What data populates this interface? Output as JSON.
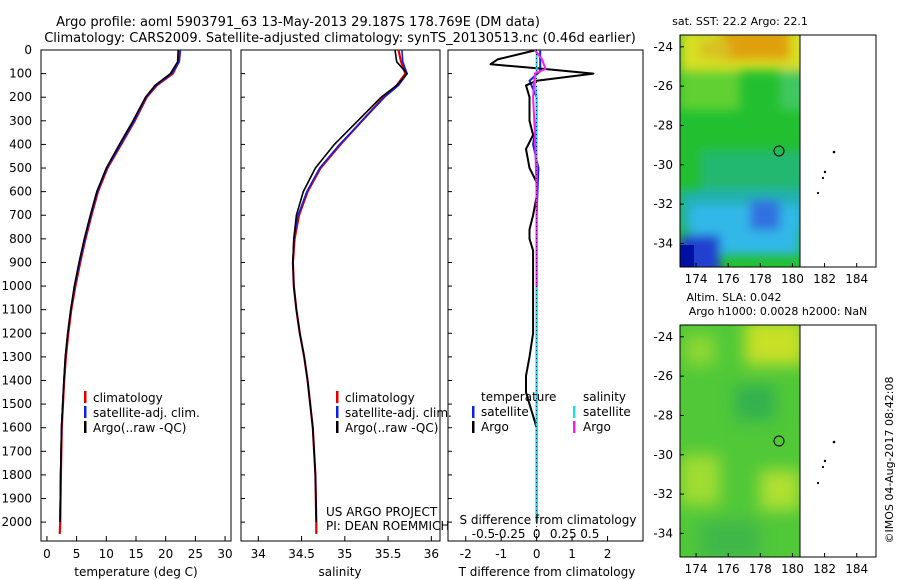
{
  "header": {
    "title_line1": "Argo profile: aoml 5903791_63 13-May-2013 29.187S 178.769E (DM data)",
    "title_line2": "Climatology: CARS2009. Satellite-adjusted climatology: synTS_20130513.nc (0.46d earlier)"
  },
  "credits": {
    "project": "US ARGO PROJECT",
    "pi": "PI: DEAN ROEMMICH",
    "stamp": "©IMOS 04-Aug-2017 08:42:08"
  },
  "colors": {
    "climatology": "#e00000",
    "satellite": "#1020e0",
    "argo": "#000000",
    "salinity_satellite": "#20d8f0",
    "salinity_argo": "#f020f0"
  },
  "legend_profiles": [
    {
      "label": "climatology",
      "color": "#e00000"
    },
    {
      "label": "satellite-adj. clim.",
      "color": "#1020e0"
    },
    {
      "label": "Argo(..raw -QC)",
      "color": "#000000"
    }
  ],
  "legend_diff": {
    "temp_header": "temperature",
    "sal_header": "salinity",
    "temp_items": [
      {
        "label": "satellite",
        "color": "#1020e0"
      },
      {
        "label": "Argo",
        "color": "#000000"
      }
    ],
    "sal_items": [
      {
        "label": "satellite",
        "color": "#20d8f0"
      },
      {
        "label": "Argo",
        "color": "#f020f0"
      }
    ]
  },
  "maps": {
    "sst_title": "sat. SST: 22.2  Argo: 22.1",
    "sla_title_line1": "Altim. SLA: 0.042",
    "sla_title_line2": "Argo h1000: 0.0028 h2000: NaN",
    "lon_ticks": [
      "174",
      "176",
      "178",
      "180",
      "182",
      "184"
    ],
    "lat_ticks": [
      "-24",
      "-26",
      "-28",
      "-30",
      "-32",
      "-34"
    ],
    "argo_position": {
      "lon": 178.769,
      "lat": -29.187
    }
  },
  "chart_data": [
    {
      "type": "line",
      "xlabel": "temperature (deg C)",
      "ylabel": "",
      "xlim": [
        -1,
        31
      ],
      "ylim": [
        2080,
        0
      ],
      "x_ticks": [
        "0",
        "5",
        "10",
        "15",
        "20",
        "25",
        "30"
      ],
      "y_ticks": [
        "0",
        "100",
        "200",
        "300",
        "400",
        "500",
        "600",
        "700",
        "800",
        "900",
        "1000",
        "1100",
        "1200",
        "1300",
        "1400",
        "1500",
        "1600",
        "1700",
        "1800",
        "1900",
        "2000"
      ],
      "series": [
        {
          "name": "climatology",
          "color": "#e00000",
          "x": [
            22.4,
            22.2,
            21.2,
            18.5,
            16.8,
            14.8,
            12.5,
            10.2,
            8.6,
            7.5,
            6.5,
            5.6,
            4.8,
            4.1,
            3.6,
            3.2,
            2.9,
            2.7,
            2.5,
            2.35,
            2.25,
            2.15
          ],
          "y": [
            0,
            50,
            100,
            150,
            200,
            300,
            400,
            500,
            600,
            700,
            800,
            900,
            1000,
            1100,
            1200,
            1300,
            1400,
            1500,
            1600,
            1800,
            2000,
            2050
          ]
        },
        {
          "name": "satellite-adj. clim.",
          "color": "#1020e0",
          "x": [
            22.5,
            22.3,
            21.0,
            18.4,
            16.7,
            14.7,
            12.4,
            10.1,
            8.5,
            7.4,
            6.4,
            5.5,
            4.7,
            4.0,
            3.5,
            3.1,
            2.85,
            2.65,
            2.45,
            2.3,
            2.2
          ],
          "y": [
            0,
            50,
            100,
            150,
            200,
            300,
            400,
            500,
            600,
            700,
            800,
            900,
            1000,
            1100,
            1200,
            1300,
            1400,
            1500,
            1600,
            1800,
            2000
          ]
        },
        {
          "name": "Argo(..raw -QC)",
          "color": "#000000",
          "x": [
            22.1,
            22.0,
            20.8,
            18.2,
            16.6,
            14.5,
            12.2,
            10.0,
            8.4,
            7.3,
            6.3,
            5.4,
            4.6,
            4.0,
            3.5,
            3.1,
            2.85,
            2.65,
            2.45,
            2.3,
            2.2
          ],
          "y": [
            0,
            50,
            100,
            150,
            200,
            300,
            400,
            500,
            600,
            700,
            800,
            900,
            1000,
            1100,
            1200,
            1300,
            1400,
            1500,
            1600,
            1800,
            2000
          ]
        }
      ]
    },
    {
      "type": "line",
      "xlabel": "salinity",
      "ylabel": "",
      "xlim": [
        33.8,
        36.1
      ],
      "ylim": [
        2080,
        0
      ],
      "x_ticks": [
        "34",
        "34.5",
        "35",
        "35.5",
        "36"
      ],
      "series": [
        {
          "name": "climatology",
          "color": "#e00000",
          "x": [
            35.62,
            35.65,
            35.7,
            35.6,
            35.45,
            35.2,
            34.95,
            34.72,
            34.57,
            34.47,
            34.42,
            34.4,
            34.41,
            34.44,
            34.48,
            34.53,
            34.57,
            34.6,
            34.63,
            34.66,
            34.67,
            34.67
          ],
          "y": [
            0,
            50,
            100,
            150,
            200,
            300,
            400,
            500,
            600,
            700,
            800,
            900,
            1000,
            1100,
            1200,
            1300,
            1400,
            1500,
            1600,
            1800,
            2000,
            2050
          ]
        },
        {
          "name": "satellite-adj. clim.",
          "color": "#1020e0",
          "x": [
            35.66,
            35.67,
            35.72,
            35.62,
            35.46,
            35.2,
            34.94,
            34.71,
            34.56,
            34.46,
            34.41,
            34.4,
            34.41,
            34.44,
            34.48,
            34.53,
            34.57,
            34.6,
            34.63,
            34.66,
            34.67
          ],
          "y": [
            0,
            50,
            100,
            150,
            200,
            300,
            400,
            500,
            600,
            700,
            800,
            900,
            1000,
            1100,
            1200,
            1300,
            1400,
            1500,
            1600,
            1800,
            2000
          ]
        },
        {
          "name": "Argo(..raw -QC)",
          "color": "#000000",
          "x": [
            35.58,
            35.6,
            35.72,
            35.6,
            35.42,
            35.15,
            34.88,
            34.66,
            34.52,
            34.44,
            34.41,
            34.4,
            34.41,
            34.44,
            34.48,
            34.53,
            34.57,
            34.6,
            34.63,
            34.66,
            34.67
          ],
          "y": [
            0,
            50,
            100,
            150,
            200,
            300,
            400,
            500,
            600,
            700,
            800,
            900,
            1000,
            1100,
            1200,
            1300,
            1400,
            1500,
            1600,
            1800,
            2000
          ]
        }
      ]
    },
    {
      "type": "line",
      "xlabel": "T difference from climatology",
      "xlabel_top": "S difference from climatology",
      "ylabel": "",
      "xlim": [
        -2.5,
        3
      ],
      "ylim": [
        2080,
        0
      ],
      "x_ticks": [
        "-2",
        "-1",
        "0",
        "1",
        "2"
      ],
      "x_ticks_top": [
        "-0.5",
        "-0.25",
        "0",
        "0.25",
        "0.5"
      ],
      "series": [
        {
          "name": "temperature satellite",
          "color": "#1020e0",
          "x": [
            0.1,
            0.1,
            0.1,
            -0.2,
            0.0,
            0.0,
            -0.1,
            0.05,
            0.0,
            0.0,
            0.0,
            0.0,
            0.0,
            0.0
          ],
          "y": [
            0,
            30,
            90,
            130,
            200,
            300,
            400,
            500,
            700,
            900,
            1200,
            1500,
            1800,
            2000
          ]
        },
        {
          "name": "temperature Argo",
          "color": "#000000",
          "x": [
            0.0,
            -1.1,
            -1.3,
            0.2,
            1.6,
            0.0,
            -0.3,
            -0.2,
            -0.2,
            -0.1,
            -0.3,
            -0.2,
            0.0,
            0.0,
            -0.1,
            -0.2,
            -0.2,
            -0.1,
            -0.1,
            -0.1,
            -0.1,
            -0.2,
            -0.3,
            -0.3,
            -0.2,
            -0.1,
            0.0,
            0.0,
            0.0
          ],
          "y": [
            0,
            40,
            60,
            80,
            100,
            130,
            150,
            200,
            300,
            360,
            420,
            500,
            560,
            620,
            700,
            760,
            800,
            850,
            900,
            1000,
            1200,
            1300,
            1380,
            1450,
            1500,
            1550,
            1600,
            1800,
            2000
          ]
        },
        {
          "name": "salinity satellite",
          "color": "#20d8f0",
          "x": [
            0.0,
            0.0,
            0.0,
            -0.05,
            0.0,
            0.0,
            0.0,
            0.0,
            0.0,
            0.0,
            0.0,
            0.0
          ],
          "y": [
            0,
            30,
            90,
            130,
            200,
            300,
            400,
            600,
            900,
            1200,
            1600,
            2000
          ]
        },
        {
          "name": "salinity Argo",
          "color": "#f020f0",
          "x": [
            -0.05,
            0.15,
            0.25,
            -0.05,
            -0.1,
            -0.05,
            -0.02,
            0.0,
            0.0,
            0.0
          ],
          "y": [
            0,
            40,
            80,
            100,
            200,
            350,
            500,
            600,
            800,
            1000
          ]
        }
      ]
    }
  ]
}
